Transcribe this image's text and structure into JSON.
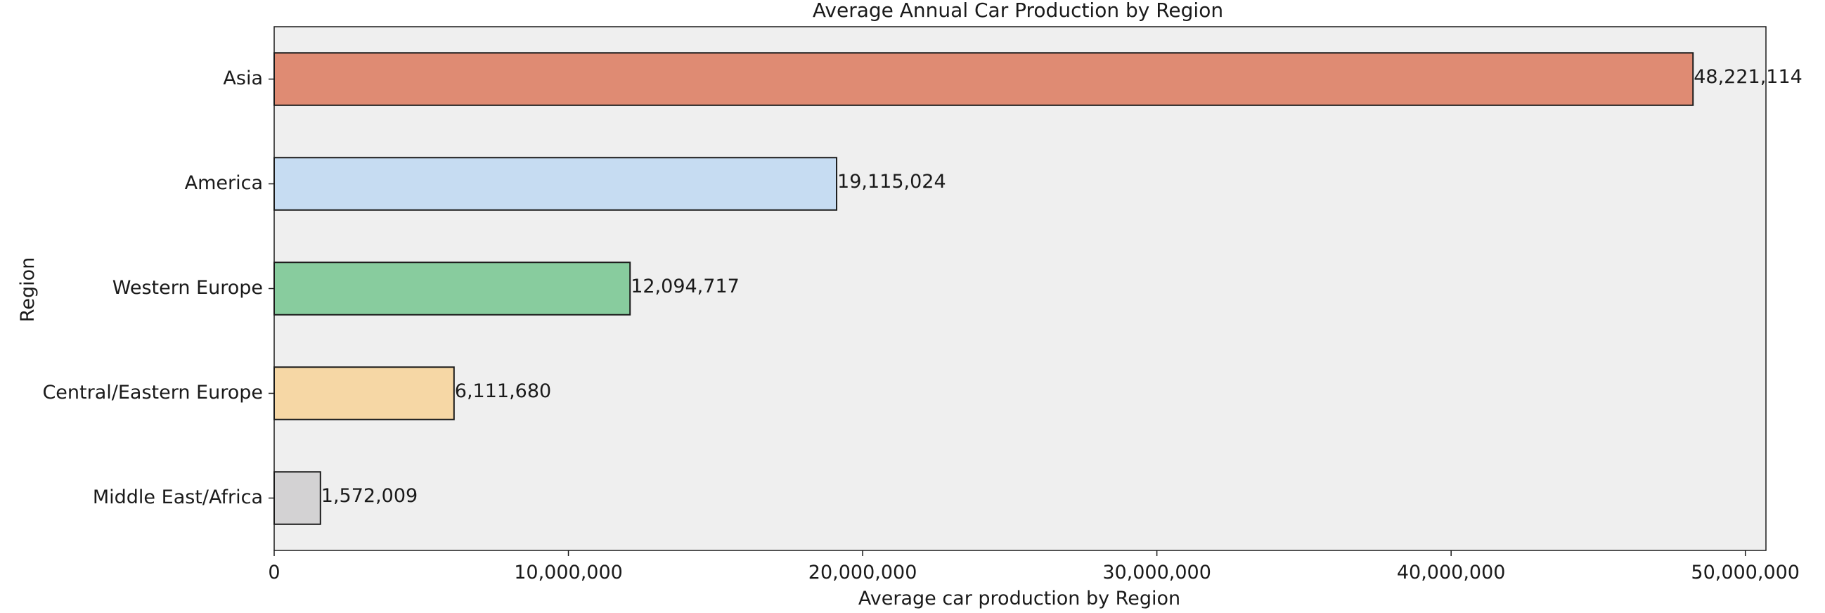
{
  "chart_data": {
    "type": "bar",
    "orientation": "horizontal",
    "title": "Average Annual Car Production by Region",
    "xlabel": "Average car production by Region",
    "ylabel": "Region",
    "categories": [
      "Asia",
      "America",
      "Western Europe",
      "Central/Eastern Europe",
      "Middle East/Africa"
    ],
    "values": [
      48221114,
      19115024,
      12094717,
      6111680,
      1572009
    ],
    "value_labels": [
      "48,221,114",
      "19,115,024",
      "12,094,717",
      "6,111,680",
      "1,572,009"
    ],
    "bar_colors": [
      "#df8b73",
      "#c6dcf2",
      "#88cc9e",
      "#f6d7a5",
      "#d3d2d3"
    ],
    "xlim": [
      0,
      50700000
    ],
    "x_ticks": [
      0,
      10000000,
      20000000,
      30000000,
      40000000,
      50000000
    ],
    "x_tick_labels": [
      "0",
      "10,000,000",
      "20,000,000",
      "30,000,000",
      "40,000,000",
      "50,000,000"
    ],
    "grid": false,
    "plot_background": "#efefef",
    "edge_color": "#1a1a1a"
  }
}
